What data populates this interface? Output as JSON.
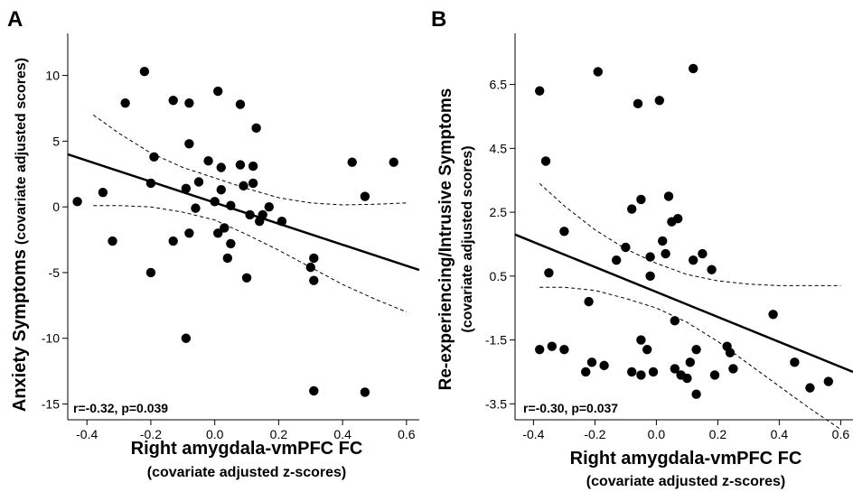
{
  "chart_data": [
    {
      "type": "scatter",
      "panel_label": "A",
      "xlabel": "Right amygdala-vmPFC FC",
      "xlabel_sub": "(covariate adjusted z-scores)",
      "ylabel": "Anxiety Symptoms",
      "ylabel_sub": "(covariate adjusted scores)",
      "annotation": "r=-0.32, p=0.039",
      "xlim": [
        -0.46,
        0.64
      ],
      "ylim": [
        -16.2,
        13.2
      ],
      "xticks": [
        -0.4,
        -0.2,
        0,
        0.2,
        0.4,
        0.6
      ],
      "xtick_labels": [
        "-0.4",
        "-0.2",
        "0.0",
        "0.2",
        "0.4",
        "0.6"
      ],
      "yticks": [
        10,
        5,
        0,
        -5,
        -10,
        -15
      ],
      "ytick_labels": [
        "10",
        "5",
        "0",
        "-5",
        "-10",
        "-15"
      ],
      "grid": false,
      "regression_line": {
        "x": [
          -0.46,
          0.64
        ],
        "y": [
          4.0,
          -4.8
        ]
      },
      "confidence_band": {
        "x": [
          -0.38,
          -0.3,
          -0.2,
          -0.1,
          0.0,
          0.1,
          0.2,
          0.3,
          0.4,
          0.5,
          0.6
        ],
        "upper": [
          7.0,
          5.6,
          4.1,
          3.0,
          2.2,
          1.4,
          0.7,
          0.3,
          0.15,
          0.2,
          0.3
        ],
        "lower": [
          0.1,
          0.1,
          0.0,
          -0.4,
          -1.0,
          -2.1,
          -3.3,
          -4.6,
          -5.9,
          -7.0,
          -8.0
        ]
      },
      "points": [
        [
          -0.43,
          0.4
        ],
        [
          -0.35,
          1.1
        ],
        [
          -0.32,
          -2.6
        ],
        [
          -0.28,
          7.9
        ],
        [
          -0.22,
          10.3
        ],
        [
          -0.2,
          1.8
        ],
        [
          -0.2,
          -5.0
        ],
        [
          -0.19,
          3.8
        ],
        [
          -0.13,
          8.1
        ],
        [
          -0.13,
          -2.6
        ],
        [
          -0.09,
          1.4
        ],
        [
          -0.08,
          4.8
        ],
        [
          -0.08,
          7.9
        ],
        [
          -0.08,
          -2.0
        ],
        [
          -0.09,
          -10.0
        ],
        [
          -0.06,
          -0.1
        ],
        [
          -0.05,
          1.9
        ],
        [
          -0.02,
          3.5
        ],
        [
          0.0,
          0.4
        ],
        [
          0.01,
          8.8
        ],
        [
          0.01,
          -2.0
        ],
        [
          0.02,
          3.0
        ],
        [
          0.02,
          1.3
        ],
        [
          0.03,
          -1.6
        ],
        [
          0.04,
          -3.9
        ],
        [
          0.05,
          -2.8
        ],
        [
          0.05,
          0.1
        ],
        [
          0.08,
          7.8
        ],
        [
          0.08,
          3.2
        ],
        [
          0.09,
          1.6
        ],
        [
          0.1,
          -5.4
        ],
        [
          0.11,
          -0.6
        ],
        [
          0.12,
          1.8
        ],
        [
          0.12,
          3.1
        ],
        [
          0.13,
          6.0
        ],
        [
          0.14,
          -1.1
        ],
        [
          0.15,
          -0.6
        ],
        [
          0.17,
          0.0
        ],
        [
          0.21,
          -1.1
        ],
        [
          0.3,
          -4.6
        ],
        [
          0.31,
          -5.6
        ],
        [
          0.31,
          -3.9
        ],
        [
          0.31,
          -14.0
        ],
        [
          0.43,
          3.4
        ],
        [
          0.47,
          0.8
        ],
        [
          0.47,
          -14.1
        ],
        [
          0.56,
          3.4
        ]
      ]
    },
    {
      "type": "scatter",
      "panel_label": "B",
      "xlabel": "Right amygdala-vmPFC FC",
      "xlabel_sub": "(covariate adjusted z-scores)",
      "ylabel": "Re-experiencing/Intrusive Symptoms",
      "ylabel_sub": "(covariate adjusted scores)",
      "annotation": "r=-0.30, p=0.037",
      "xlim": [
        -0.46,
        0.64
      ],
      "ylim": [
        -4.0,
        8.1
      ],
      "xticks": [
        -0.4,
        -0.2,
        0,
        0.2,
        0.4,
        0.6
      ],
      "xtick_labels": [
        "-0.4",
        "-0.2",
        "0.0",
        "0.2",
        "0.4",
        "0.6"
      ],
      "yticks": [
        6.5,
        4.5,
        2.5,
        0.5,
        -1.5,
        -3.5
      ],
      "ytick_labels": [
        "6.5",
        "4.5",
        "2.5",
        "0.5",
        "-1.5",
        "-3.5"
      ],
      "grid": false,
      "regression_line": {
        "x": [
          -0.46,
          0.64
        ],
        "y": [
          1.8,
          -2.5
        ]
      },
      "confidence_band": {
        "x": [
          -0.38,
          -0.3,
          -0.2,
          -0.1,
          0.0,
          0.1,
          0.2,
          0.3,
          0.4,
          0.5,
          0.6
        ],
        "upper": [
          3.4,
          2.7,
          1.95,
          1.35,
          0.9,
          0.55,
          0.35,
          0.25,
          0.2,
          0.2,
          0.2
        ],
        "lower": [
          0.15,
          0.15,
          0.05,
          -0.2,
          -0.5,
          -0.95,
          -1.55,
          -2.25,
          -2.95,
          -3.65,
          -4.3
        ]
      },
      "points": [
        [
          -0.38,
          6.3
        ],
        [
          -0.38,
          -1.8
        ],
        [
          -0.36,
          4.1
        ],
        [
          -0.35,
          0.6
        ],
        [
          -0.34,
          -1.7
        ],
        [
          -0.3,
          -1.8
        ],
        [
          -0.3,
          1.9
        ],
        [
          -0.23,
          -2.5
        ],
        [
          -0.22,
          -0.3
        ],
        [
          -0.21,
          -2.2
        ],
        [
          -0.19,
          6.9
        ],
        [
          -0.17,
          -2.3
        ],
        [
          -0.13,
          1.0
        ],
        [
          -0.1,
          1.4
        ],
        [
          -0.08,
          2.6
        ],
        [
          -0.08,
          -2.5
        ],
        [
          -0.06,
          5.9
        ],
        [
          -0.05,
          2.9
        ],
        [
          -0.05,
          -1.5
        ],
        [
          -0.05,
          -2.6
        ],
        [
          -0.03,
          -1.8
        ],
        [
          -0.02,
          0.5
        ],
        [
          -0.02,
          1.1
        ],
        [
          -0.01,
          -2.5
        ],
        [
          0.01,
          6.0
        ],
        [
          0.02,
          1.6
        ],
        [
          0.03,
          1.2
        ],
        [
          0.04,
          3.0
        ],
        [
          0.05,
          2.2
        ],
        [
          0.06,
          -0.9
        ],
        [
          0.06,
          -2.4
        ],
        [
          0.07,
          2.3
        ],
        [
          0.08,
          -2.6
        ],
        [
          0.1,
          -2.7
        ],
        [
          0.11,
          -2.2
        ],
        [
          0.12,
          1.0
        ],
        [
          0.12,
          7.0
        ],
        [
          0.13,
          -1.8
        ],
        [
          0.13,
          -3.2
        ],
        [
          0.15,
          1.2
        ],
        [
          0.18,
          0.7
        ],
        [
          0.19,
          -2.6
        ],
        [
          0.23,
          -1.7
        ],
        [
          0.24,
          -1.9
        ],
        [
          0.25,
          -2.4
        ],
        [
          0.38,
          -0.7
        ],
        [
          0.45,
          -2.2
        ],
        [
          0.5,
          -3.0
        ],
        [
          0.56,
          -2.8
        ]
      ]
    }
  ]
}
